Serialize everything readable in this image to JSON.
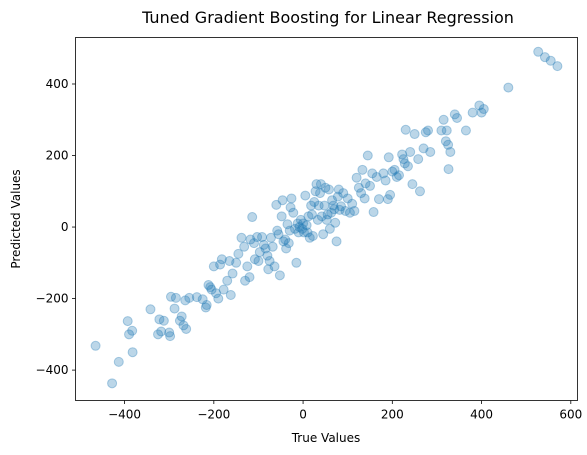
{
  "chart_data": {
    "type": "scatter",
    "title": "Tuned Gradient Boosting for Linear Regression",
    "xlabel": "True Values",
    "ylabel": "Predicted Values",
    "xlim": [
      -510,
      615
    ],
    "ylim": [
      -485,
      530
    ],
    "xticks": [
      -400,
      -200,
      0,
      200,
      400,
      600
    ],
    "yticks": [
      -400,
      -200,
      0,
      200,
      400
    ],
    "xtick_labels": [
      "−400",
      "−200",
      "0",
      "200",
      "400",
      "600"
    ],
    "ytick_labels": [
      "−400",
      "−200",
      "0",
      "200",
      "400"
    ],
    "grid": false,
    "marker_color": "#1f77b4",
    "marker_alpha": 0.3,
    "points": [
      [
        -465,
        -332
      ],
      [
        -428,
        -437
      ],
      [
        -413,
        -377
      ],
      [
        -393,
        -263
      ],
      [
        -390,
        -300
      ],
      [
        -383,
        -290
      ],
      [
        -382,
        -350
      ],
      [
        -342,
        -230
      ],
      [
        -325,
        -300
      ],
      [
        -322,
        -258
      ],
      [
        -318,
        -292
      ],
      [
        -312,
        -262
      ],
      [
        -300,
        -295
      ],
      [
        -298,
        -305
      ],
      [
        -296,
        -195
      ],
      [
        -288,
        -228
      ],
      [
        -285,
        -198
      ],
      [
        -276,
        -262
      ],
      [
        -272,
        -250
      ],
      [
        -268,
        -275
      ],
      [
        -264,
        -205
      ],
      [
        -262,
        -285
      ],
      [
        -255,
        -198
      ],
      [
        -238,
        -196
      ],
      [
        -225,
        -202
      ],
      [
        -218,
        -225
      ],
      [
        -216,
        -218
      ],
      [
        -212,
        -162
      ],
      [
        -208,
        -168
      ],
      [
        -205,
        -175
      ],
      [
        -200,
        -110
      ],
      [
        -195,
        -185
      ],
      [
        -190,
        -200
      ],
      [
        -186,
        -105
      ],
      [
        -182,
        -90
      ],
      [
        -178,
        -175
      ],
      [
        -170,
        -150
      ],
      [
        -165,
        -95
      ],
      [
        -162,
        -190
      ],
      [
        -158,
        -130
      ],
      [
        -150,
        -100
      ],
      [
        -145,
        -75
      ],
      [
        -138,
        -30
      ],
      [
        -132,
        -55
      ],
      [
        -130,
        -150
      ],
      [
        -125,
        -110
      ],
      [
        -120,
        -140
      ],
      [
        -118,
        -35
      ],
      [
        -114,
        28
      ],
      [
        -110,
        -45
      ],
      [
        -108,
        -90
      ],
      [
        -103,
        -28
      ],
      [
        -100,
        -95
      ],
      [
        -97,
        -70
      ],
      [
        -92,
        -28
      ],
      [
        -88,
        -50
      ],
      [
        -84,
        -60
      ],
      [
        -80,
        -80
      ],
      [
        -78,
        -118
      ],
      [
        -75,
        -95
      ],
      [
        -72,
        -30
      ],
      [
        -68,
        -55
      ],
      [
        -64,
        -110
      ],
      [
        -60,
        62
      ],
      [
        -58,
        -10
      ],
      [
        -55,
        -20
      ],
      [
        -52,
        -135
      ],
      [
        -48,
        30
      ],
      [
        -46,
        75
      ],
      [
        -44,
        -40
      ],
      [
        -40,
        -35
      ],
      [
        -38,
        -60
      ],
      [
        -35,
        8
      ],
      [
        -32,
        -45
      ],
      [
        -30,
        -10
      ],
      [
        -28,
        55
      ],
      [
        -26,
        80
      ],
      [
        -22,
        40
      ],
      [
        -18,
        -5
      ],
      [
        -15,
        -100
      ],
      [
        -12,
        10
      ],
      [
        -10,
        -15
      ],
      [
        -8,
        0
      ],
      [
        -5,
        20
      ],
      [
        -2,
        -5
      ],
      [
        0,
        10
      ],
      [
        2,
        -15
      ],
      [
        5,
        88
      ],
      [
        8,
        5
      ],
      [
        10,
        -15
      ],
      [
        12,
        30
      ],
      [
        15,
        -30
      ],
      [
        18,
        60
      ],
      [
        20,
        35
      ],
      [
        22,
        -25
      ],
      [
        25,
        70
      ],
      [
        28,
        100
      ],
      [
        30,
        120
      ],
      [
        33,
        20
      ],
      [
        35,
        60
      ],
      [
        38,
        95
      ],
      [
        40,
        120
      ],
      [
        42,
        30
      ],
      [
        45,
        -20
      ],
      [
        48,
        60
      ],
      [
        50,
        110
      ],
      [
        53,
        20
      ],
      [
        55,
        35
      ],
      [
        58,
        105
      ],
      [
        60,
        -5
      ],
      [
        63,
        40
      ],
      [
        65,
        75
      ],
      [
        68,
        60
      ],
      [
        70,
        50
      ],
      [
        72,
        12
      ],
      [
        75,
        -40
      ],
      [
        78,
        85
      ],
      [
        80,
        105
      ],
      [
        82,
        48
      ],
      [
        85,
        58
      ],
      [
        90,
        95
      ],
      [
        95,
        45
      ],
      [
        100,
        80
      ],
      [
        105,
        40
      ],
      [
        110,
        65
      ],
      [
        115,
        45
      ],
      [
        120,
        138
      ],
      [
        125,
        110
      ],
      [
        130,
        95
      ],
      [
        133,
        160
      ],
      [
        138,
        80
      ],
      [
        140,
        122
      ],
      [
        145,
        200
      ],
      [
        150,
        115
      ],
      [
        155,
        150
      ],
      [
        158,
        42
      ],
      [
        165,
        140
      ],
      [
        170,
        78
      ],
      [
        180,
        150
      ],
      [
        185,
        130
      ],
      [
        190,
        78
      ],
      [
        192,
        195
      ],
      [
        195,
        90
      ],
      [
        200,
        155
      ],
      [
        205,
        160
      ],
      [
        210,
        140
      ],
      [
        215,
        145
      ],
      [
        222,
        203
      ],
      [
        225,
        190
      ],
      [
        228,
        178
      ],
      [
        230,
        272
      ],
      [
        235,
        170
      ],
      [
        240,
        210
      ],
      [
        245,
        120
      ],
      [
        250,
        260
      ],
      [
        258,
        190
      ],
      [
        262,
        100
      ],
      [
        270,
        220
      ],
      [
        275,
        265
      ],
      [
        280,
        270
      ],
      [
        285,
        210
      ],
      [
        310,
        270
      ],
      [
        315,
        300
      ],
      [
        320,
        240
      ],
      [
        322,
        270
      ],
      [
        325,
        230
      ],
      [
        326,
        162
      ],
      [
        330,
        210
      ],
      [
        340,
        315
      ],
      [
        345,
        305
      ],
      [
        365,
        270
      ],
      [
        380,
        320
      ],
      [
        395,
        340
      ],
      [
        400,
        320
      ],
      [
        405,
        330
      ],
      [
        460,
        390
      ],
      [
        527,
        490
      ],
      [
        542,
        475
      ],
      [
        555,
        465
      ],
      [
        570,
        450
      ]
    ]
  }
}
